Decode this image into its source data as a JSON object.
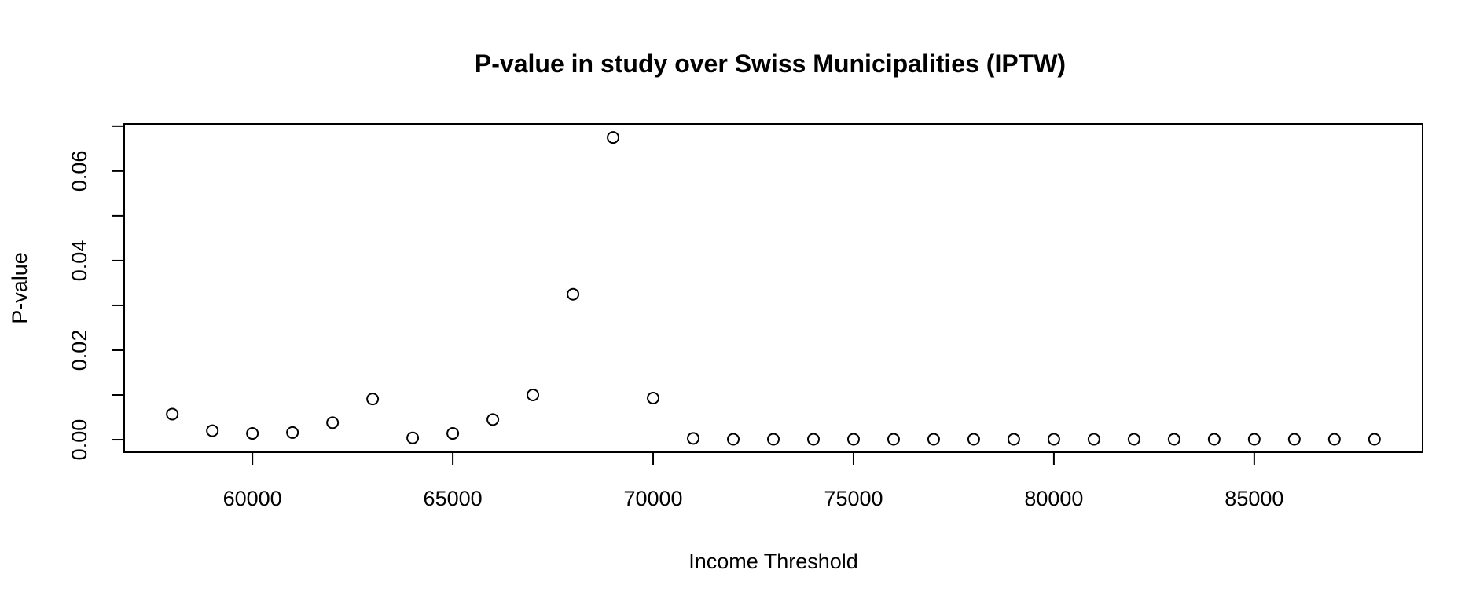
{
  "chart_data": {
    "type": "scatter",
    "title": "P-value in study over Swiss Municipalities (IPTW)",
    "xlabel": "Income Threshold",
    "ylabel": "P-value",
    "xlim": [
      56800,
      89200
    ],
    "ylim": [
      -0.0028,
      0.0705
    ],
    "xticks": [
      60000,
      65000,
      70000,
      75000,
      80000,
      85000
    ],
    "xtick_labels": [
      "60000",
      "65000",
      "70000",
      "75000",
      "80000",
      "85000"
    ],
    "yticks": [
      0,
      0.01,
      0.02,
      0.03,
      0.04,
      0.05,
      0.06,
      0.07
    ],
    "ytick_labels": [
      "0.00",
      "",
      "0.02",
      "",
      "0.04",
      "",
      "0.06",
      ""
    ],
    "grid": false,
    "marker": "open-circle",
    "colors": {
      "marker_stroke": "#000000",
      "axis": "#000000",
      "background": "#ffffff"
    },
    "x": [
      58000,
      59000,
      60000,
      61000,
      62000,
      63000,
      64000,
      65000,
      66000,
      67000,
      68000,
      69000,
      70000,
      71000,
      72000,
      73000,
      74000,
      75000,
      76000,
      77000,
      78000,
      79000,
      80000,
      81000,
      82000,
      83000,
      84000,
      85000,
      86000,
      87000,
      88000
    ],
    "y": [
      0.0057,
      0.002,
      0.0014,
      0.0016,
      0.0038,
      0.0091,
      0.0004,
      0.0014,
      0.0045,
      0.01,
      0.0325,
      0.0675,
      0.0093,
      0.0003,
      0.0001,
      0.0001,
      0.0001,
      0.0001,
      0.0001,
      0.0001,
      0.0001,
      0.0001,
      0.0001,
      0.0001,
      0.0001,
      0.0001,
      0.0001,
      0.0001,
      0.0001,
      0.0001,
      0.0001
    ]
  }
}
